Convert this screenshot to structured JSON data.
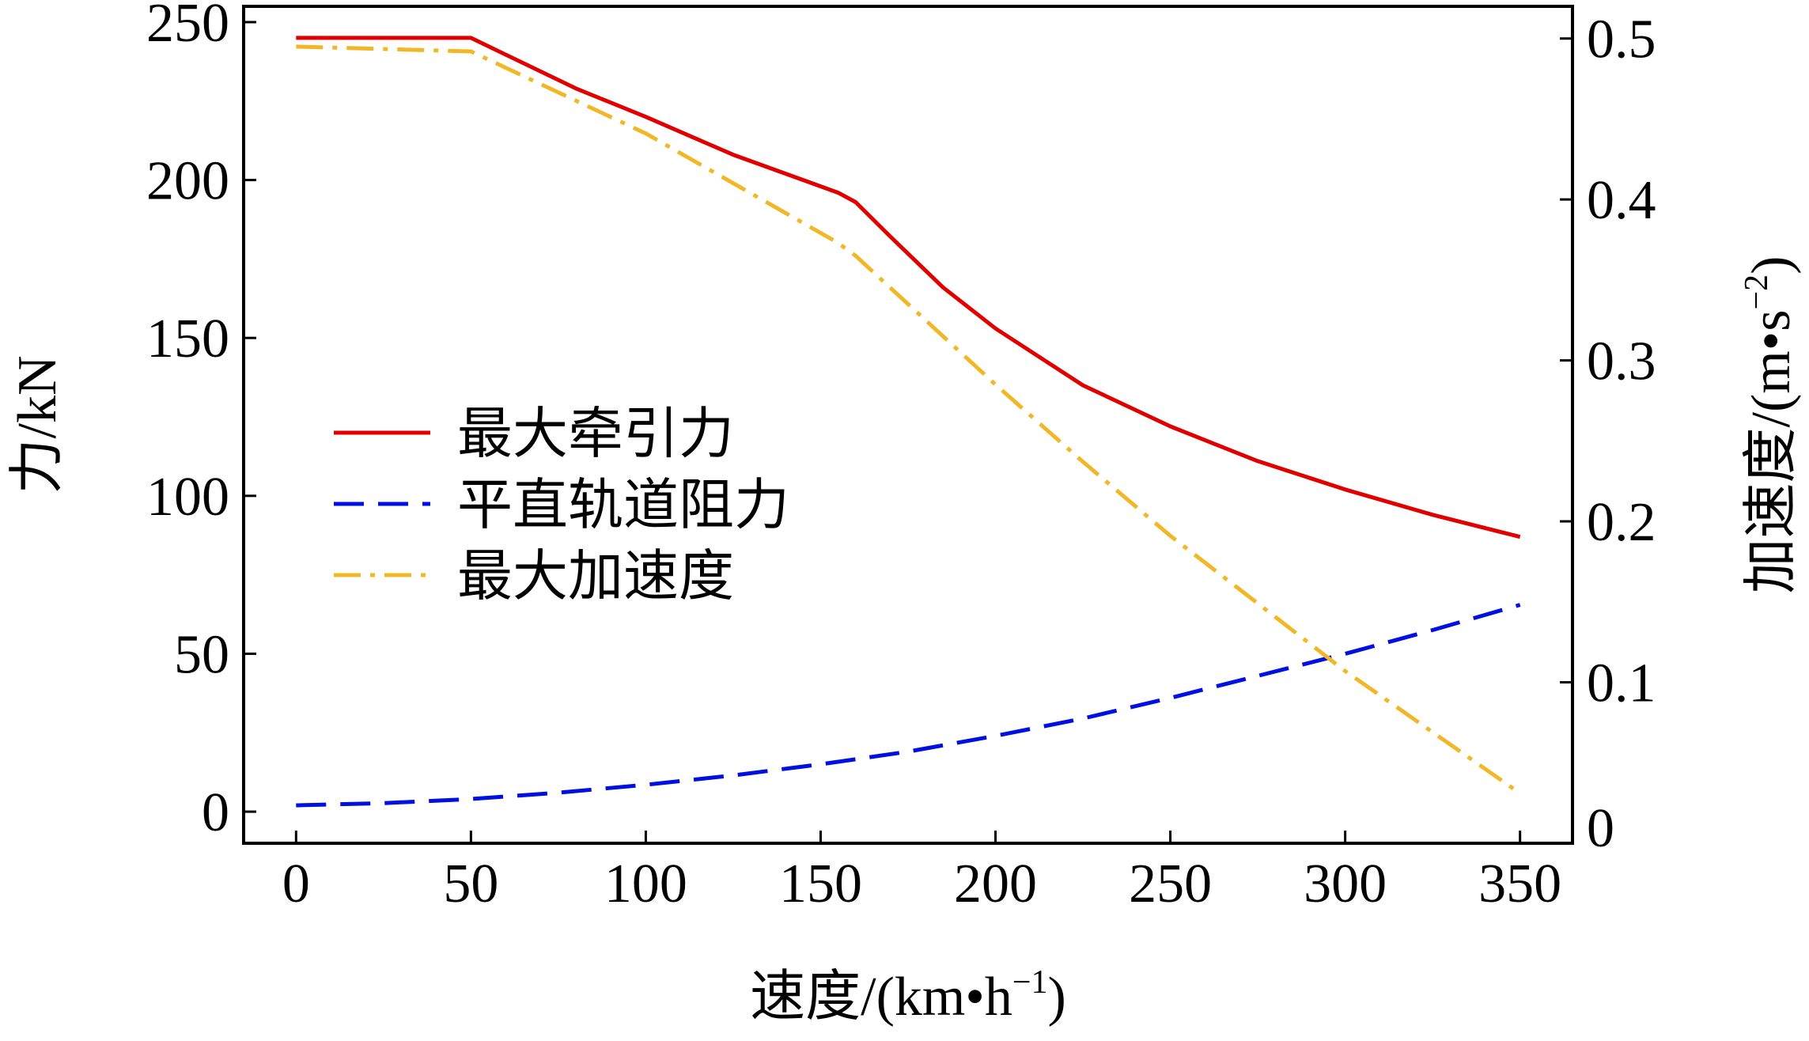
{
  "chart_data": {
    "type": "line",
    "x_label": "速度/(km•h",
    "x_label_sup": "−1",
    "x_label_close": ")",
    "y_left_label": "力/kN",
    "y_right_label": "加速度/(m•s",
    "y_right_label_sup": "−2",
    "y_right_label_close": ")",
    "xlim": [
      -15,
      365
    ],
    "ylim_left": [
      -10,
      255
    ],
    "ylim_right": [
      0,
      0.52
    ],
    "x_ticks": [
      0,
      50,
      100,
      150,
      200,
      250,
      300,
      350
    ],
    "x_tick_labels": [
      "0",
      "50",
      "100",
      "150",
      "200",
      "250",
      "300",
      "350"
    ],
    "y_left_ticks": [
      0,
      50,
      100,
      150,
      200,
      250
    ],
    "y_left_tick_labels": [
      "0",
      "50",
      "100",
      "150",
      "200",
      "250"
    ],
    "y_right_ticks": [
      0.1,
      0.2,
      0.3,
      0.4,
      0.5
    ],
    "y_right_tick_labels": [
      "0.1",
      "0.2",
      "0.3",
      "0.4",
      "0.5"
    ],
    "y_right_origin_label": "0",
    "legend_position": "center-left",
    "series": [
      {
        "name": "最大牵引力",
        "axis": "left",
        "color": "#e00000",
        "dash": "solid",
        "x": [
          0,
          50,
          80,
          100,
          125,
          155,
          160,
          170,
          185,
          200,
          225,
          250,
          275,
          300,
          325,
          350
        ],
        "y": [
          245,
          245,
          229,
          220,
          208,
          196,
          193,
          182,
          166,
          153,
          135,
          122,
          111,
          102,
          94,
          87
        ]
      },
      {
        "name": "平直轨道阻力",
        "axis": "left",
        "color": "#0010e0",
        "dash": "long-dash",
        "x": [
          0,
          25,
          50,
          75,
          100,
          125,
          150,
          175,
          200,
          225,
          250,
          275,
          300,
          325,
          350
        ],
        "y": [
          2,
          2.7,
          4,
          6,
          8.5,
          11.5,
          15,
          19,
          24,
          29.5,
          36,
          43,
          50,
          57.5,
          65.5
        ]
      },
      {
        "name": "最大加速度",
        "axis": "right",
        "color": "#f0b828",
        "dash": "dash-dot",
        "x": [
          0,
          50,
          100,
          155,
          160,
          175,
          200,
          225,
          250,
          275,
          300,
          325,
          350
        ],
        "y": [
          0.495,
          0.492,
          0.441,
          0.373,
          0.365,
          0.335,
          0.285,
          0.237,
          0.191,
          0.149,
          0.107,
          0.069,
          0.031
        ]
      }
    ]
  }
}
